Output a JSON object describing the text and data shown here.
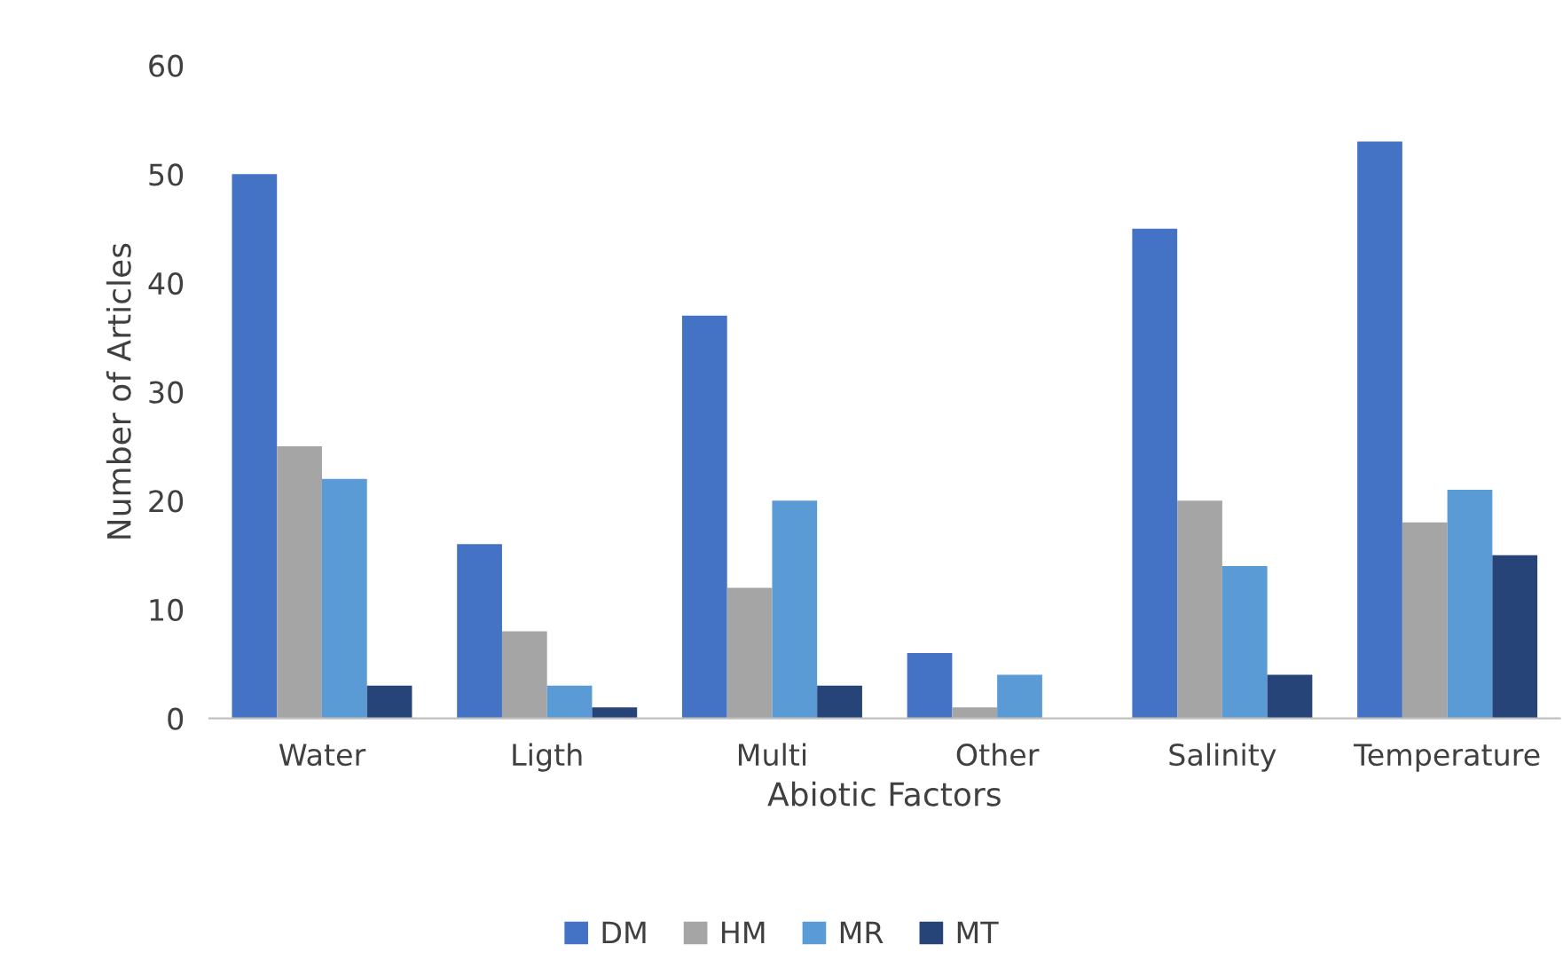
{
  "chart_data": {
    "type": "bar",
    "xlabel": "Abiotic Factors",
    "ylabel": "Number of Articles",
    "categories": [
      "Water",
      "Ligth",
      "Multi",
      "Other",
      "Salinity",
      "Temperature"
    ],
    "series": [
      {
        "name": "DM",
        "color": "#4472c4",
        "values": [
          50,
          16,
          37,
          6,
          45,
          53
        ]
      },
      {
        "name": "HM",
        "color": "#a5a5a5",
        "values": [
          25,
          8,
          12,
          1,
          20,
          18
        ]
      },
      {
        "name": "MR",
        "color": "#5b9bd5",
        "values": [
          22,
          3,
          20,
          4,
          14,
          21
        ]
      },
      {
        "name": "MT",
        "color": "#264478",
        "values": [
          3,
          1,
          3,
          0,
          4,
          15
        ]
      }
    ],
    "ylim": [
      0,
      60
    ],
    "yticks": [
      0,
      10,
      20,
      30,
      40,
      50,
      60
    ],
    "grid": false,
    "legend": "bottom"
  }
}
